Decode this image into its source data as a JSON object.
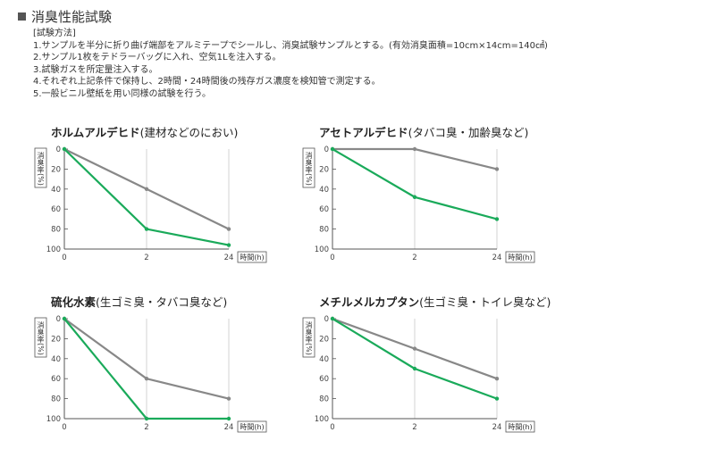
{
  "header": {
    "title": "消臭性能試験"
  },
  "method": {
    "heading": "[試験方法]",
    "steps": [
      "1.サンプルを半分に折り曲げ端部をアルミテープでシールし、消臭試験サンプルとする。(有効消臭面積=10cm×14cm=140㎠)",
      "2.サンプル1枚をテドラーバッグに入れ、空気1Lを注入する。",
      "3.試験ガスを所定量注入する。",
      "4.それぞれ上記条件で保持し、2時間・24時間後の残存ガス濃度を検知管で測定する。",
      "5.一般ビニル壁紙を用い同様の試験を行う。"
    ]
  },
  "chart_data": [
    {
      "type": "line",
      "title": "ホルムアルデヒド",
      "subtitle": "(建材などのにおい)",
      "ylabel": "消臭率(%)",
      "xlabel": "時間(h)",
      "categories": [
        "0",
        "2",
        "24"
      ],
      "yticks": [
        0,
        20,
        40,
        60,
        80,
        100
      ],
      "ylim": [
        0,
        100
      ],
      "y_inverted": true,
      "grid": "vertical",
      "series": [
        {
          "color": "#888888",
          "values": [
            0,
            40,
            80
          ]
        },
        {
          "color": "#1aaa5a",
          "values": [
            0,
            80,
            96
          ]
        }
      ]
    },
    {
      "type": "line",
      "title": "アセトアルデヒド",
      "subtitle": "(タバコ臭・加齢臭など)",
      "ylabel": "消臭率(%)",
      "xlabel": "時間(h)",
      "categories": [
        "0",
        "2",
        "24"
      ],
      "yticks": [
        0,
        20,
        40,
        60,
        80,
        100
      ],
      "ylim": [
        0,
        100
      ],
      "y_inverted": true,
      "grid": "vertical",
      "series": [
        {
          "color": "#888888",
          "values": [
            0,
            0,
            20
          ]
        },
        {
          "color": "#1aaa5a",
          "values": [
            0,
            48,
            70
          ]
        }
      ]
    },
    {
      "type": "line",
      "title": "硫化水素",
      "subtitle": "(生ゴミ臭・タバコ臭など)",
      "ylabel": "消臭率(%)",
      "xlabel": "時間(h)",
      "categories": [
        "0",
        "2",
        "24"
      ],
      "yticks": [
        0,
        20,
        40,
        60,
        80,
        100
      ],
      "ylim": [
        0,
        100
      ],
      "y_inverted": true,
      "grid": "vertical",
      "series": [
        {
          "color": "#888888",
          "values": [
            0,
            60,
            80
          ]
        },
        {
          "color": "#1aaa5a",
          "values": [
            0,
            100,
            100
          ]
        }
      ]
    },
    {
      "type": "line",
      "title": "メチルメルカプタン",
      "subtitle": "(生ゴミ臭・トイレ臭など)",
      "ylabel": "消臭率(%)",
      "xlabel": "時間(h)",
      "categories": [
        "0",
        "2",
        "24"
      ],
      "yticks": [
        0,
        20,
        40,
        60,
        80,
        100
      ],
      "ylim": [
        0,
        100
      ],
      "y_inverted": true,
      "grid": "vertical",
      "series": [
        {
          "color": "#888888",
          "values": [
            0,
            30,
            60
          ]
        },
        {
          "color": "#1aaa5a",
          "values": [
            0,
            50,
            80
          ]
        }
      ]
    }
  ]
}
